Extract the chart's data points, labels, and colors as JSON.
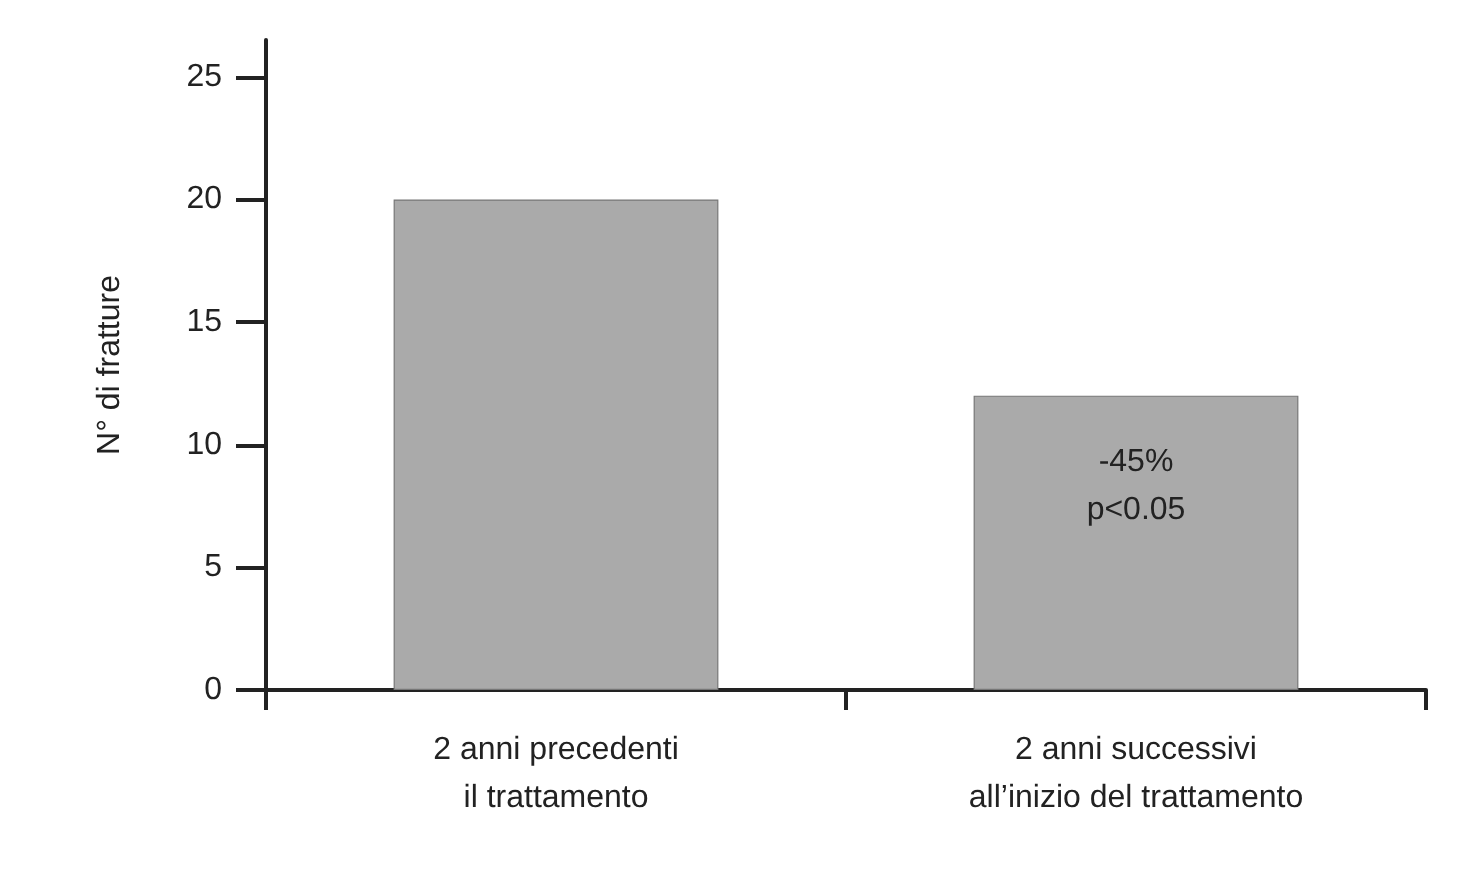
{
  "chart_data": {
    "type": "bar",
    "ylabel": "N° di fratture",
    "categories": [
      "2 anni precedenti\nil trattamento",
      "2 anni successivi\nall’inizio del trattamento"
    ],
    "values": [
      20,
      12
    ],
    "color": "#aaaaaa",
    "ylim": [
      0,
      26.5
    ],
    "yticks": [
      0,
      5,
      10,
      15,
      20,
      25
    ],
    "grid": false,
    "annotations": [
      "-45%\np<0.05"
    ]
  }
}
